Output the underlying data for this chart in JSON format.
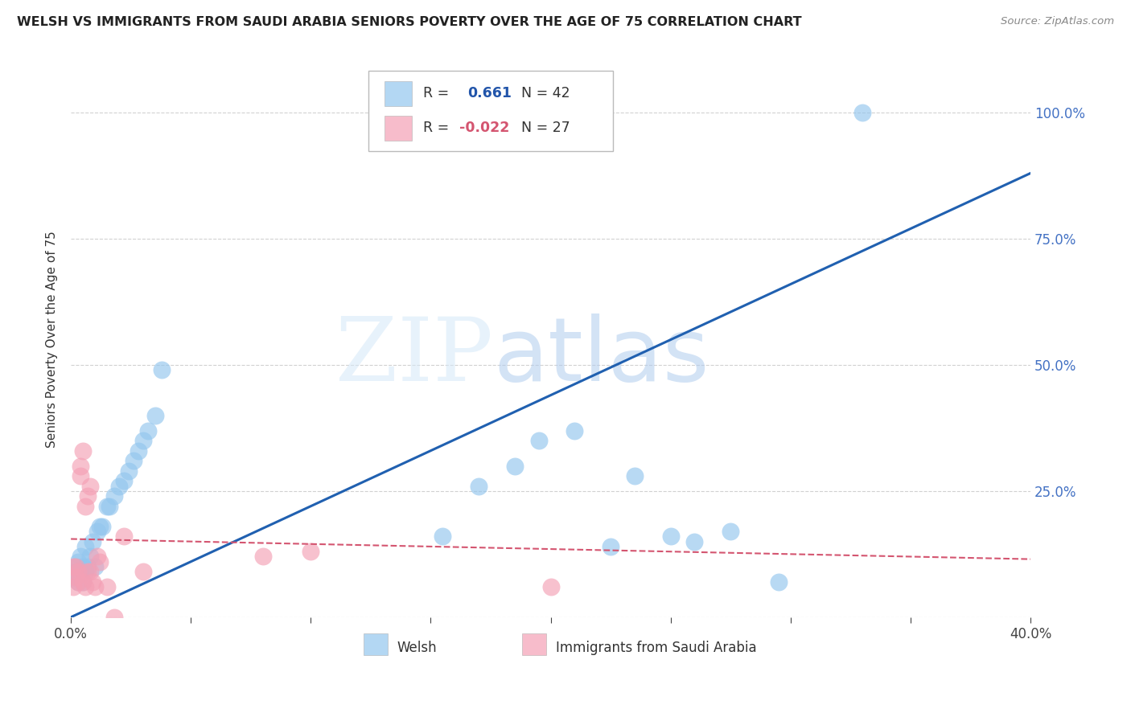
{
  "title": "WELSH VS IMMIGRANTS FROM SAUDI ARABIA SENIORS POVERTY OVER THE AGE OF 75 CORRELATION CHART",
  "source": "Source: ZipAtlas.com",
  "ylabel": "Seniors Poverty Over the Age of 75",
  "xlim": [
    0.0,
    0.4
  ],
  "ylim": [
    0.0,
    1.1
  ],
  "yticks": [
    0.0,
    0.25,
    0.5,
    0.75,
    1.0
  ],
  "xticks": [
    0.0,
    0.05,
    0.1,
    0.15,
    0.2,
    0.25,
    0.3,
    0.35,
    0.4
  ],
  "welsh_R": 0.661,
  "welsh_N": 42,
  "saudi_R": -0.022,
  "saudi_N": 27,
  "welsh_color": "#93C6EE",
  "saudi_color": "#F4A0B5",
  "welsh_line_color": "#2060B0",
  "saudi_line_color": "#D45570",
  "background_color": "#FFFFFF",
  "welsh_x": [
    0.001,
    0.002,
    0.002,
    0.003,
    0.003,
    0.004,
    0.004,
    0.005,
    0.005,
    0.006,
    0.006,
    0.007,
    0.008,
    0.009,
    0.01,
    0.011,
    0.012,
    0.013,
    0.015,
    0.016,
    0.018,
    0.02,
    0.022,
    0.024,
    0.026,
    0.028,
    0.03,
    0.032,
    0.035,
    0.038,
    0.155,
    0.17,
    0.185,
    0.195,
    0.21,
    0.225,
    0.235,
    0.25,
    0.26,
    0.275,
    0.295,
    0.33
  ],
  "welsh_y": [
    0.08,
    0.09,
    0.1,
    0.07,
    0.11,
    0.09,
    0.12,
    0.07,
    0.1,
    0.09,
    0.14,
    0.1,
    0.12,
    0.15,
    0.1,
    0.17,
    0.18,
    0.18,
    0.22,
    0.22,
    0.24,
    0.26,
    0.27,
    0.29,
    0.31,
    0.33,
    0.35,
    0.37,
    0.4,
    0.49,
    0.16,
    0.26,
    0.3,
    0.35,
    0.37,
    0.14,
    0.28,
    0.16,
    0.15,
    0.17,
    0.07,
    1.0
  ],
  "saudi_x": [
    0.001,
    0.001,
    0.002,
    0.002,
    0.003,
    0.003,
    0.004,
    0.004,
    0.005,
    0.005,
    0.006,
    0.006,
    0.007,
    0.007,
    0.008,
    0.008,
    0.009,
    0.01,
    0.011,
    0.012,
    0.015,
    0.018,
    0.022,
    0.03,
    0.08,
    0.1,
    0.2
  ],
  "saudi_y": [
    0.06,
    0.1,
    0.08,
    0.1,
    0.07,
    0.09,
    0.28,
    0.3,
    0.33,
    0.07,
    0.06,
    0.22,
    0.24,
    0.09,
    0.26,
    0.09,
    0.07,
    0.06,
    0.12,
    0.11,
    0.06,
    0.0,
    0.16,
    0.09,
    0.12,
    0.13,
    0.06
  ],
  "welsh_line_x0": 0.0,
  "welsh_line_y0": 0.0,
  "welsh_line_x1": 0.4,
  "welsh_line_y1": 0.88,
  "saudi_line_x0": 0.0,
  "saudi_line_y0": 0.155,
  "saudi_line_x1": 0.4,
  "saudi_line_y1": 0.115
}
